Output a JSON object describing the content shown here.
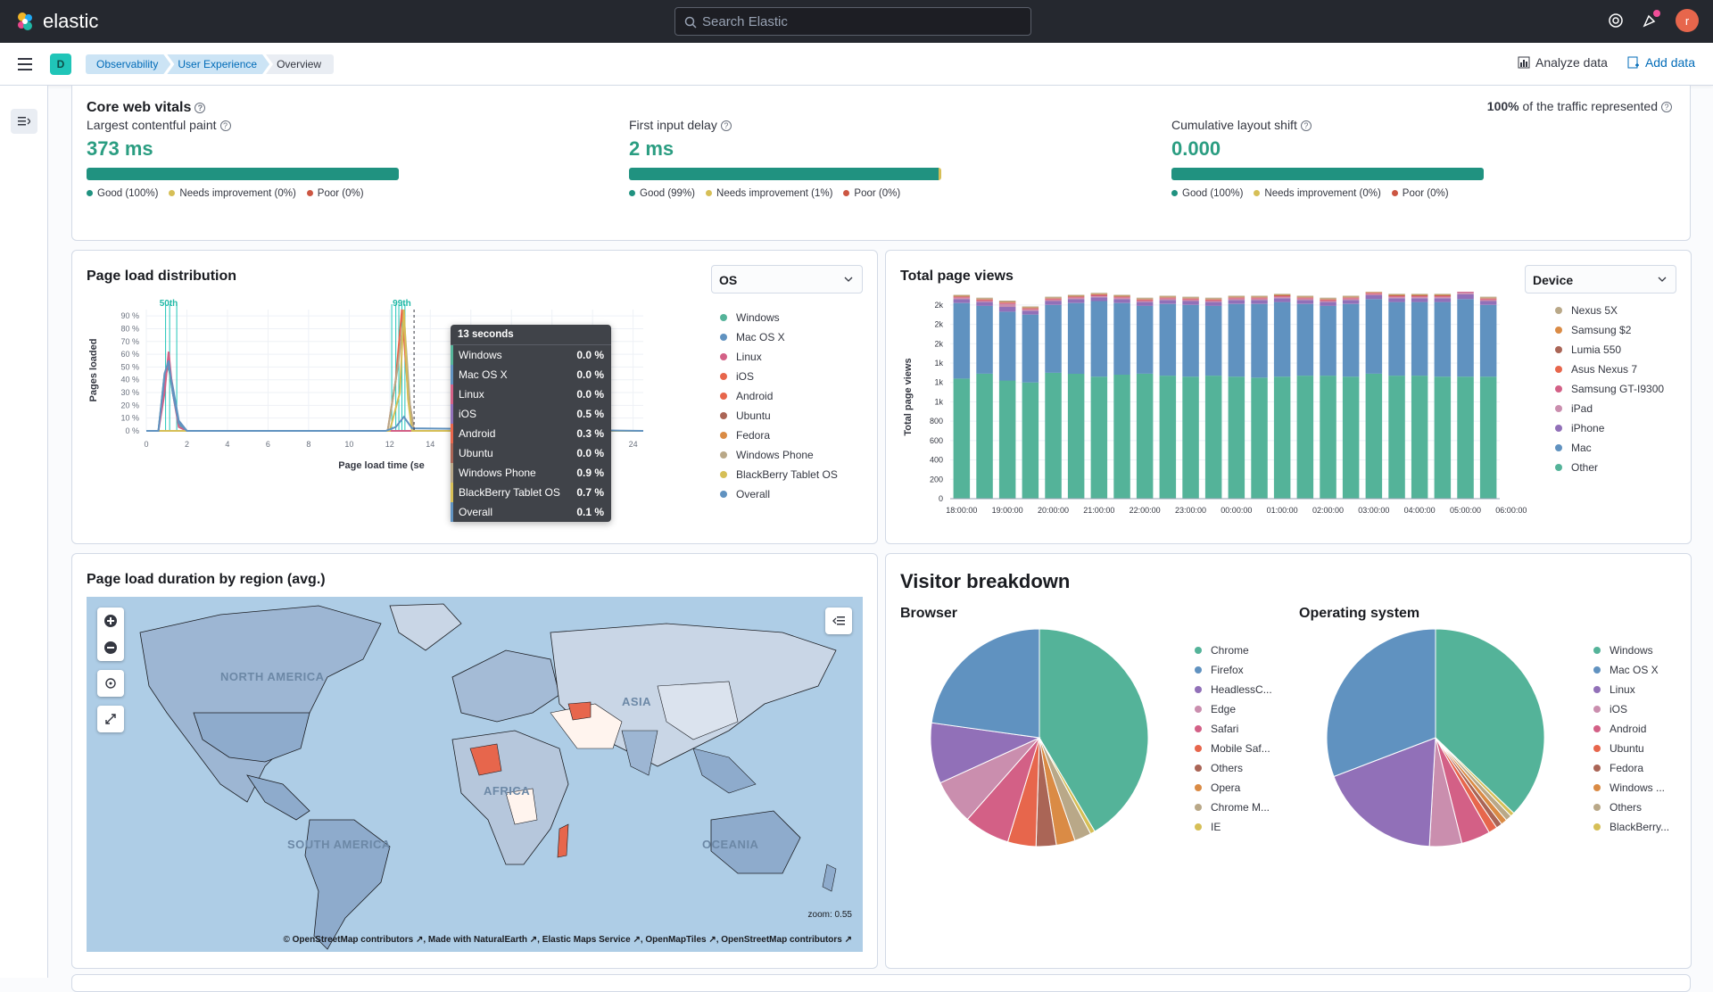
{
  "topbar": {
    "brand": "elastic",
    "search_placeholder": "Search Elastic",
    "avatar_initial": "r"
  },
  "subbar": {
    "space_initial": "D",
    "breadcrumbs": [
      "Observability",
      "User Experience",
      "Overview"
    ],
    "analyze_label": "Analyze data",
    "add_data_label": "Add data"
  },
  "vitals": {
    "title": "Core web vitals",
    "traffic_pct": "100%",
    "traffic_text": "of the traffic represented",
    "items": [
      {
        "label": "Largest contentful paint",
        "value": "373 ms",
        "good": 1.0,
        "needs": 0.0,
        "poor": 0.0,
        "legend": [
          "Good (100%)",
          "Needs improvement (0%)",
          "Poor (0%)"
        ]
      },
      {
        "label": "First input delay",
        "value": "2 ms",
        "good": 0.99,
        "needs": 0.01,
        "poor": 0.0,
        "legend": [
          "Good (99%)",
          "Needs improvement (1%)",
          "Poor (0%)"
        ]
      },
      {
        "label": "Cumulative layout shift",
        "value": "0.000",
        "good": 1.0,
        "needs": 0.0,
        "poor": 0.0,
        "legend": [
          "Good (100%)",
          "Needs improvement (0%)",
          "Poor (0%)"
        ]
      }
    ],
    "colors": {
      "good": "#209280",
      "needs": "#d6bf57",
      "poor": "#cc5642"
    }
  },
  "page_load": {
    "title": "Page load distribution",
    "select_value": "OS",
    "y_axis_label": "Pages loaded",
    "x_axis_label": "Page load time (se",
    "percentile_marks_left": "50th",
    "percentile_marks_right": "99th",
    "legend": [
      {
        "name": "Windows",
        "color": "#54b399"
      },
      {
        "name": "Mac OS X",
        "color": "#6092c0"
      },
      {
        "name": "Linux",
        "color": "#d36086"
      },
      {
        "name": "iOS",
        "color": "#e7664c"
      },
      {
        "name": "Android",
        "color": "#e7664c"
      },
      {
        "name": "Ubuntu",
        "color": "#aa6556"
      },
      {
        "name": "Fedora",
        "color": "#da8b45"
      },
      {
        "name": "Windows Phone",
        "color": "#b9a888"
      },
      {
        "name": "BlackBerry Tablet OS",
        "color": "#d6bf57"
      },
      {
        "name": "Overall",
        "color": "#6092c0"
      }
    ],
    "tooltip": {
      "title": "13 seconds",
      "rows": [
        {
          "name": "Windows",
          "value": "0.0 %",
          "color": "#54b399"
        },
        {
          "name": "Mac OS X",
          "value": "0.0 %",
          "color": "#6092c0"
        },
        {
          "name": "Linux",
          "value": "0.0 %",
          "color": "#d36086"
        },
        {
          "name": "iOS",
          "value": "0.5 %",
          "color": "#9170b8"
        },
        {
          "name": "Android",
          "value": "0.3 %",
          "color": "#e7664c"
        },
        {
          "name": "Ubuntu",
          "value": "0.0 %",
          "color": "#aa6556"
        },
        {
          "name": "Windows Phone",
          "value": "0.9 %",
          "color": "#b9a888"
        },
        {
          "name": "BlackBerry Tablet OS",
          "value": "0.7 %",
          "color": "#d6bf57"
        },
        {
          "name": "Overall",
          "value": "0.1 %",
          "color": "#6092c0"
        }
      ]
    }
  },
  "page_views": {
    "title": "Total page views",
    "select_value": "Device",
    "y_axis_label": "Total page views",
    "legend": [
      {
        "name": "Nexus 5X",
        "color": "#b9a888"
      },
      {
        "name": "Samsung $2",
        "color": "#da8b45"
      },
      {
        "name": "Lumia 550",
        "color": "#aa6556"
      },
      {
        "name": "Asus Nexus 7",
        "color": "#e7664c"
      },
      {
        "name": "Samsung GT-I9300",
        "color": "#d36086"
      },
      {
        "name": "iPad",
        "color": "#ca8eae"
      },
      {
        "name": "iPhone",
        "color": "#9170b8"
      },
      {
        "name": "Mac",
        "color": "#6092c0"
      },
      {
        "name": "Other",
        "color": "#54b399"
      }
    ]
  },
  "map": {
    "title": "Page load duration by region (avg.)",
    "zoom_text": "zoom: 0.55",
    "attribution": "© OpenStreetMap contributors ↗, Made with NaturalEarth ↗, Elastic Maps Service ↗, OpenMapTiles ↗, OpenStreetMap contributors ↗",
    "labels": [
      "NORTH AMERICA",
      "SOUTH AMERICA",
      "AFRICA",
      "ASIA",
      "OCEANIA"
    ]
  },
  "visitors": {
    "title": "Visitor breakdown",
    "browser_title": "Browser",
    "os_title": "Operating system",
    "browser_legend": [
      {
        "name": "Chrome",
        "color": "#54b399"
      },
      {
        "name": "Firefox",
        "color": "#6092c0"
      },
      {
        "name": "HeadlessC...",
        "color": "#9170b8"
      },
      {
        "name": "Edge",
        "color": "#ca8eae"
      },
      {
        "name": "Safari",
        "color": "#d36086"
      },
      {
        "name": "Mobile Saf...",
        "color": "#e7664c"
      },
      {
        "name": "Others",
        "color": "#aa6556"
      },
      {
        "name": "Opera",
        "color": "#da8b45"
      },
      {
        "name": "Chrome M...",
        "color": "#b9a888"
      },
      {
        "name": "IE",
        "color": "#d6bf57"
      }
    ],
    "os_legend": [
      {
        "name": "Windows",
        "color": "#54b399"
      },
      {
        "name": "Mac OS X",
        "color": "#6092c0"
      },
      {
        "name": "Linux",
        "color": "#9170b8"
      },
      {
        "name": "iOS",
        "color": "#ca8eae"
      },
      {
        "name": "Android",
        "color": "#d36086"
      },
      {
        "name": "Ubuntu",
        "color": "#e7664c"
      },
      {
        "name": "Fedora",
        "color": "#aa6556"
      },
      {
        "name": "Windows ...",
        "color": "#da8b45"
      },
      {
        "name": "Others",
        "color": "#b9a888"
      },
      {
        "name": "BlackBerry...",
        "color": "#d6bf57"
      }
    ]
  },
  "chart_data": [
    {
      "type": "line",
      "title": "Page load distribution",
      "xlabel": "Page load time (se",
      "ylabel": "Pages loaded",
      "x_ticks": [
        "0",
        "2",
        "4",
        "6",
        "8",
        "10",
        "12",
        "14",
        "16",
        "18",
        "20",
        "22",
        "24"
      ],
      "y_ticks": [
        "0 %",
        "10 %",
        "20 %",
        "30 %",
        "40 %",
        "50 %",
        "60 %",
        "70 %",
        "80 %",
        "90 %"
      ],
      "xlim": [
        0,
        24.5
      ],
      "ylim": [
        0,
        95
      ],
      "series": [
        {
          "name": "Windows",
          "color": "#54b399",
          "x": [
            0,
            0.6,
            0.9,
            1.1,
            1.3,
            1.6,
            2,
            12,
            12.4,
            12.8,
            13,
            14,
            24.5
          ],
          "y": [
            0,
            0,
            45,
            50,
            30,
            5,
            0,
            0,
            0,
            0,
            0,
            0,
            0
          ]
        },
        {
          "name": "Mac OS X",
          "color": "#6092c0",
          "x": [
            0,
            0.6,
            0.9,
            1.1,
            1.3,
            1.6,
            2,
            12,
            24.5
          ],
          "y": [
            0,
            0,
            40,
            52,
            35,
            8,
            0,
            0,
            0
          ]
        },
        {
          "name": "Linux",
          "color": "#d36086",
          "x": [
            0,
            0.6,
            0.9,
            1.1,
            1.3,
            1.6,
            2,
            24.5
          ],
          "y": [
            0,
            0,
            30,
            62,
            30,
            3,
            0,
            0
          ]
        },
        {
          "name": "Android",
          "color": "#e7664c",
          "x": [
            0,
            11.9,
            12.3,
            12.6,
            12.9,
            13.2,
            24.5
          ],
          "y": [
            0,
            0,
            40,
            95,
            30,
            0,
            0
          ]
        },
        {
          "name": "Windows Phone",
          "color": "#b9a888",
          "x": [
            0,
            11.9,
            12.4,
            12.7,
            13,
            13.2,
            24.5
          ],
          "y": [
            0,
            0,
            50,
            90,
            20,
            0,
            0
          ]
        },
        {
          "name": "BlackBerry Tablet OS",
          "color": "#d6bf57",
          "x": [
            0,
            12,
            12.5,
            12.7,
            12.9,
            13.1,
            24.5
          ],
          "y": [
            0,
            0,
            30,
            95,
            25,
            0,
            0
          ]
        },
        {
          "name": "Overall",
          "color": "#6092c0",
          "x": [
            0,
            0.6,
            0.9,
            1.1,
            1.3,
            1.6,
            2,
            11.8,
            12.3,
            12.7,
            13.1,
            24.5
          ],
          "y": [
            0,
            0,
            45,
            55,
            30,
            6,
            0,
            0,
            3,
            11,
            2,
            0
          ]
        }
      ],
      "percentile_lines": [
        0.95,
        1.15,
        1.5,
        12.1,
        12.3,
        12.45,
        12.6,
        12.75
      ]
    },
    {
      "type": "bar",
      "stacked": true,
      "title": "Total page views",
      "ylabel": "Total page views",
      "y_ticks": [
        "0",
        "200",
        "400",
        "600",
        "800",
        "1k",
        "1k",
        "1k",
        "2k",
        "2k",
        "2k"
      ],
      "ylim": [
        0,
        2100
      ],
      "x_ticks": [
        "18:00:00",
        "19:00:00",
        "20:00:00",
        "21:00:00",
        "22:00:00",
        "23:00:00",
        "00:00:00",
        "01:00:00",
        "02:00:00",
        "03:00:00",
        "04:00:00",
        "05:00:00",
        "06:00:00"
      ],
      "categories": [
        "18:00",
        "18:30",
        "19:00",
        "19:30",
        "20:00",
        "20:30",
        "21:00",
        "21:30",
        "22:00",
        "22:30",
        "23:00",
        "23:30",
        "00:00",
        "00:30",
        "01:00",
        "01:30",
        "02:00",
        "02:30",
        "03:00",
        "03:30",
        "04:00",
        "04:30",
        "05:00",
        "05:30"
      ],
      "series": [
        {
          "name": "Other",
          "values": [
            1240,
            1290,
            1220,
            1200,
            1300,
            1290,
            1260,
            1280,
            1290,
            1270,
            1260,
            1270,
            1260,
            1250,
            1260,
            1270,
            1270,
            1260,
            1290,
            1270,
            1270,
            1260,
            1260,
            1260
          ]
        },
        {
          "name": "Mac",
          "values": [
            780,
            700,
            710,
            700,
            700,
            730,
            780,
            740,
            700,
            740,
            740,
            720,
            750,
            760,
            770,
            740,
            720,
            750,
            770,
            760,
            760,
            770,
            800,
            740
          ]
        },
        {
          "name": "iPhone",
          "values": [
            40,
            40,
            50,
            40,
            40,
            40,
            40,
            40,
            40,
            40,
            40,
            40,
            40,
            40,
            40,
            40,
            40,
            40,
            40,
            40,
            40,
            40,
            50,
            40
          ]
        },
        {
          "name": "iPad",
          "values": [
            10,
            10,
            30,
            10,
            10,
            10,
            10,
            10,
            10,
            10,
            10,
            10,
            10,
            10,
            10,
            10,
            10,
            10,
            10,
            10,
            10,
            10,
            20,
            10
          ]
        },
        {
          "name": "Samsung GT-I9300",
          "values": [
            10,
            10,
            10,
            10,
            10,
            10,
            10,
            10,
            10,
            10,
            10,
            10,
            10,
            10,
            10,
            10,
            10,
            10,
            10,
            10,
            10,
            10,
            20,
            10
          ]
        },
        {
          "name": "Asus Nexus 7",
          "values": [
            5,
            5,
            5,
            5,
            5,
            5,
            5,
            5,
            5,
            5,
            5,
            5,
            5,
            5,
            5,
            5,
            5,
            5,
            5,
            5,
            5,
            5,
            5,
            5
          ]
        },
        {
          "name": "Lumia 550",
          "values": [
            5,
            5,
            5,
            5,
            5,
            5,
            5,
            5,
            5,
            5,
            5,
            5,
            5,
            5,
            5,
            5,
            5,
            5,
            5,
            5,
            5,
            5,
            5,
            5
          ]
        },
        {
          "name": "Samsung $2",
          "values": [
            5,
            5,
            5,
            5,
            5,
            5,
            5,
            5,
            5,
            5,
            5,
            5,
            5,
            5,
            5,
            5,
            5,
            5,
            5,
            5,
            5,
            5,
            10,
            5
          ]
        },
        {
          "name": "Nexus 5X",
          "values": [
            10,
            10,
            10,
            10,
            10,
            10,
            10,
            10,
            10,
            10,
            10,
            10,
            10,
            10,
            10,
            10,
            10,
            10,
            10,
            10,
            10,
            10,
            20,
            10
          ]
        }
      ]
    },
    {
      "type": "pie",
      "title": "Browser",
      "labels": [
        "Chrome",
        "IE",
        "Chrome M...",
        "Opera",
        "Others",
        "Mobile Saf...",
        "Safari",
        "Edge",
        "HeadlessC...",
        "Firefox"
      ],
      "values": [
        41.5,
        0.7,
        2.5,
        2.8,
        3.0,
        4.2,
        6.8,
        6.7,
        9.0,
        22.8
      ]
    },
    {
      "type": "pie",
      "title": "Operating system",
      "labels": [
        "Windows",
        "BlackBerry...",
        "Others",
        "Windows ...",
        "Fedora",
        "Ubuntu",
        "Android",
        "iOS",
        "Linux",
        "Mac OS X"
      ],
      "values": [
        37.2,
        0.6,
        0.9,
        0.9,
        0.9,
        1.3,
        4.3,
        4.8,
        18.3,
        30.8
      ]
    }
  ]
}
